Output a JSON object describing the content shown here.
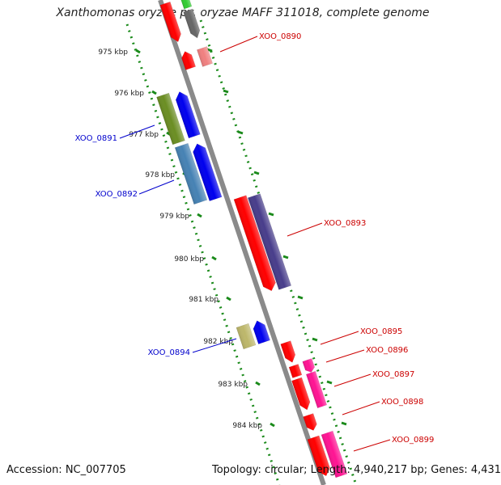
{
  "title": "Xanthomonas oryzae pv. oryzae MAFF 311018, complete genome",
  "accession_text": "Accession: NC_007705",
  "summary_text": "Topology: circular; Length: 4,940,217 bp; Genes: 4,431",
  "scale_ticks": [
    {
      "label": "975 kbp"
    },
    {
      "label": "976 kbp"
    },
    {
      "label": "977 kbp"
    },
    {
      "label": "978 kbp"
    },
    {
      "label": "979 kbp"
    },
    {
      "label": "980 kbp"
    },
    {
      "label": "981 kbp"
    },
    {
      "label": "982 kbp"
    },
    {
      "label": "983 kbp"
    },
    {
      "label": "984 kbp"
    }
  ],
  "gene_labels": [
    {
      "label": "XOO_0890",
      "color": "#cc0000"
    },
    {
      "label": "XOO_0891",
      "color": "#0000cc"
    },
    {
      "label": "XOO_0892",
      "color": "#0000cc"
    },
    {
      "label": "XOO_0893",
      "color": "#cc0000"
    },
    {
      "label": "XOO_0894",
      "color": "#0000cc"
    },
    {
      "label": "XOO_0895",
      "color": "#cc0000"
    },
    {
      "label": "XOO_0896",
      "color": "#cc0000"
    },
    {
      "label": "XOO_0897",
      "color": "#cc0000"
    },
    {
      "label": "XOO_0898",
      "color": "#cc0000"
    },
    {
      "label": "XOO_0899",
      "color": "#cc0000"
    }
  ]
}
